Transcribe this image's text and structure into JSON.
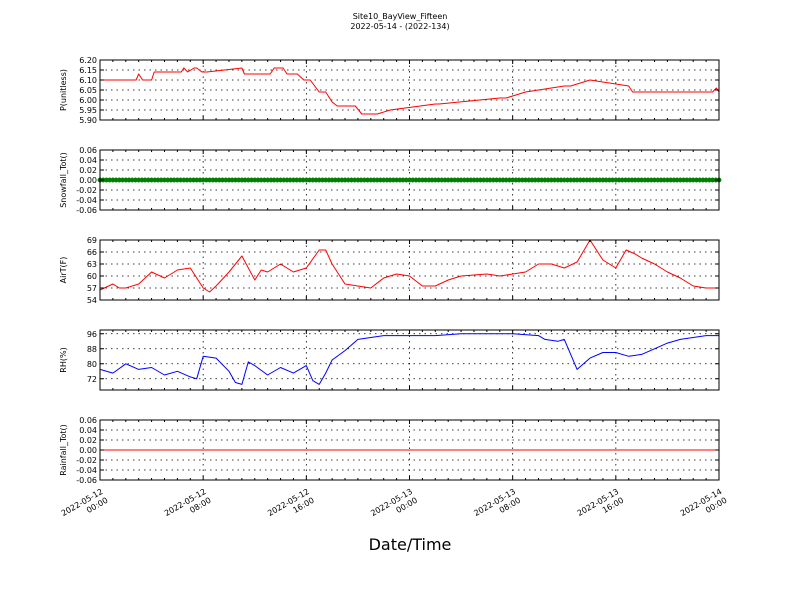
{
  "title_line1": "Site10_BayView_Fifteen",
  "title_line2": "2022-05-14 - (2022-134)",
  "xlabel": "Date/Time",
  "colors": {
    "red": "#ff0000",
    "green": "#008000",
    "blue": "#0000ff"
  },
  "chart_data": [
    {
      "type": "line",
      "ylabel": "P(unitless)",
      "ylim": [
        5.9,
        6.2
      ],
      "yticks": [
        "5.90",
        "5.95",
        "6.00",
        "6.05",
        "6.10",
        "6.15",
        "6.20"
      ],
      "xlim": [
        0,
        48
      ],
      "x_tick_labels": [
        [
          "2022-05-12",
          "00:00"
        ],
        [
          "2022-05-12",
          "08:00"
        ],
        [
          "2022-05-12",
          "16:00"
        ],
        [
          "2022-05-13",
          "00:00"
        ],
        [
          "2022-05-13",
          "08:00"
        ],
        [
          "2022-05-13",
          "16:00"
        ],
        [
          "2022-05-14",
          "00:00"
        ]
      ],
      "grid": true,
      "series": [
        {
          "color": "#ff0000",
          "style": "line",
          "x": [
            0,
            2.8,
            3,
            3.3,
            4,
            4.2,
            6.3,
            6.5,
            6.8,
            7.3,
            7.5,
            7.9,
            8.3,
            11,
            11.2,
            13.2,
            13.5,
            14.2,
            14.5,
            15.3,
            15.8,
            16.3,
            17,
            17.5,
            18,
            18.4,
            19.8,
            20.3,
            21.5,
            22.5,
            26,
            26.3,
            31,
            31.5,
            33,
            36,
            36.5,
            38,
            41,
            41.3,
            42,
            44,
            45,
            47.5,
            47.8,
            48
          ],
          "y": [
            6.1,
            6.1,
            6.13,
            6.1,
            6.1,
            6.14,
            6.14,
            6.16,
            6.14,
            6.16,
            6.16,
            6.14,
            6.14,
            6.16,
            6.13,
            6.13,
            6.16,
            6.16,
            6.13,
            6.13,
            6.1,
            6.1,
            6.04,
            6.04,
            5.99,
            5.97,
            5.97,
            5.93,
            5.93,
            5.95,
            5.98,
            5.98,
            6.01,
            6.01,
            6.04,
            6.07,
            6.07,
            6.1,
            6.07,
            6.04,
            6.04,
            6.04,
            6.04,
            6.04,
            6.06,
            6.04
          ]
        }
      ]
    },
    {
      "type": "scatter",
      "ylabel": "Snowfall_Tot()",
      "ylim": [
        -0.06,
        0.06
      ],
      "yticks": [
        "-0.06",
        "-0.04",
        "-0.02",
        "0.00",
        "0.02",
        "0.04",
        "0.06"
      ],
      "xlim": [
        0,
        48
      ],
      "grid": true,
      "series": [
        {
          "color": "#008000",
          "style": "markers",
          "x_range": [
            0,
            48
          ],
          "x_step": 0.25,
          "value": 0.0
        }
      ]
    },
    {
      "type": "line",
      "ylabel": "AirT(F)",
      "ylim": [
        54,
        69
      ],
      "yticks": [
        "54",
        "57",
        "60",
        "63",
        "66",
        "69"
      ],
      "xlim": [
        0,
        48
      ],
      "grid": true,
      "series": [
        {
          "color": "#ff0000",
          "style": "line",
          "x": [
            0,
            1,
            1.5,
            2,
            3,
            4,
            5,
            6,
            7,
            8,
            8.5,
            9,
            10,
            11,
            12,
            12.5,
            13,
            14,
            15,
            16,
            17,
            17.5,
            18,
            19,
            20,
            21,
            22,
            23,
            24,
            25,
            26,
            27,
            28,
            30,
            31,
            32,
            33,
            34,
            35,
            36,
            37,
            38,
            39,
            40,
            40.8,
            41.5,
            42,
            43,
            44,
            45,
            46,
            47,
            48
          ],
          "y": [
            56.5,
            58,
            57,
            57,
            58,
            61,
            59.5,
            61.5,
            62,
            57,
            56,
            57.5,
            61,
            65,
            59,
            61.5,
            61,
            63,
            61,
            62,
            66.5,
            66.5,
            63,
            58,
            57.5,
            57,
            59.5,
            60.5,
            60,
            57.5,
            57.5,
            59,
            60,
            60.5,
            60,
            60.5,
            61,
            63,
            63,
            62,
            63.5,
            69,
            64,
            62,
            66.5,
            65.5,
            64.5,
            63,
            61,
            59.5,
            57.5,
            57,
            57
          ]
        }
      ]
    },
    {
      "type": "line",
      "ylabel": "RH(%)",
      "ylim": [
        66,
        98
      ],
      "yticks": [
        "72",
        "80",
        "88",
        "96"
      ],
      "xlim": [
        0,
        48
      ],
      "grid": true,
      "series": [
        {
          "color": "#0000ff",
          "style": "line",
          "x": [
            0,
            1,
            2,
            3,
            4,
            5,
            6,
            7,
            7.5,
            8,
            9,
            10,
            10.5,
            11,
            11.5,
            12,
            13,
            14,
            15,
            16,
            16.5,
            17,
            17.5,
            18,
            19,
            20,
            21,
            22,
            24,
            26,
            28,
            30,
            32,
            34,
            34.5,
            35.5,
            36,
            37,
            38,
            39,
            40,
            41,
            42,
            43,
            44,
            45,
            46,
            47,
            48
          ],
          "y": [
            77,
            75,
            80,
            77,
            78,
            74,
            76,
            73,
            72,
            84,
            83,
            76,
            70,
            69,
            81,
            79,
            74,
            78,
            75,
            79,
            71,
            69,
            75,
            82,
            87,
            93,
            94,
            95,
            95,
            95,
            96,
            96,
            96,
            95,
            93,
            92,
            93,
            77,
            83,
            86,
            86,
            84,
            85,
            88,
            91,
            93,
            94,
            95,
            95
          ]
        }
      ]
    },
    {
      "type": "line",
      "ylabel": "Rainfall_Tot()",
      "ylim": [
        -0.06,
        0.06
      ],
      "yticks": [
        "-0.06",
        "-0.04",
        "-0.02",
        "0.00",
        "0.02",
        "0.04",
        "0.06"
      ],
      "xlim": [
        0,
        48
      ],
      "grid": true,
      "series": [
        {
          "color": "#ff0000",
          "style": "line",
          "x": [
            0,
            48
          ],
          "y": [
            0,
            0
          ]
        }
      ]
    }
  ]
}
